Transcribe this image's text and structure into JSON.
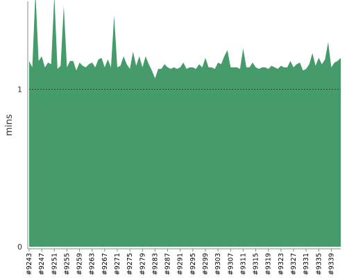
{
  "chart_data": {
    "type": "area",
    "ylabel": "mins",
    "ylim": [
      0,
      1.55
    ],
    "yticks": [
      {
        "value": 0,
        "label": "0"
      },
      {
        "value": 1,
        "label": "1"
      }
    ],
    "reference_line": {
      "y": 1,
      "style": "dotted"
    },
    "grid": false,
    "x_first_build": 9243,
    "x_label_step": 4,
    "x": [
      9243,
      9244,
      9245,
      9246,
      9247,
      9248,
      9249,
      9250,
      9251,
      9252,
      9253,
      9254,
      9255,
      9256,
      9257,
      9258,
      9259,
      9260,
      9261,
      9262,
      9263,
      9264,
      9265,
      9266,
      9267,
      9268,
      9269,
      9270,
      9271,
      9272,
      9273,
      9274,
      9275,
      9276,
      9277,
      9278,
      9279,
      9280,
      9281,
      9282,
      9283,
      9284,
      9285,
      9286,
      9287,
      9288,
      9289,
      9290,
      9291,
      9292,
      9293,
      9294,
      9295,
      9296,
      9297,
      9298,
      9299,
      9300,
      9301,
      9302,
      9303,
      9304,
      9305,
      9306,
      9307,
      9308,
      9309,
      9310,
      9311,
      9312,
      9313,
      9314,
      9315,
      9316,
      9317,
      9318,
      9319,
      9320,
      9321,
      9322,
      9323,
      9324,
      9325,
      9326,
      9327,
      9328,
      9329,
      9330,
      9331,
      9332,
      9333,
      9334,
      9335,
      9336,
      9337,
      9338,
      9339,
      9340,
      9341,
      9342
    ],
    "x_tick_labels": [
      "#9243",
      "#9247",
      "#9251",
      "#9255",
      "#9259",
      "#9263",
      "#9267",
      "#9271",
      "#9275",
      "#9279",
      "#9283",
      "#9287",
      "#9291",
      "#9295",
      "#9299",
      "#9303",
      "#9307",
      "#9311",
      "#9315",
      "#9319",
      "#9323",
      "#9327",
      "#9331",
      "#9335",
      "#9339"
    ],
    "values": [
      1.18,
      1.14,
      1.62,
      1.18,
      1.21,
      1.14,
      1.17,
      1.16,
      1.6,
      1.13,
      1.15,
      1.53,
      1.14,
      1.18,
      1.18,
      1.12,
      1.17,
      1.15,
      1.14,
      1.16,
      1.17,
      1.14,
      1.19,
      1.2,
      1.14,
      1.19,
      1.14,
      1.47,
      1.14,
      1.15,
      1.21,
      1.16,
      1.13,
      1.24,
      1.15,
      1.21,
      1.14,
      1.21,
      1.16,
      1.12,
      1.07,
      1.13,
      1.13,
      1.16,
      1.14,
      1.13,
      1.14,
      1.13,
      1.14,
      1.17,
      1.13,
      1.14,
      1.14,
      1.13,
      1.16,
      1.14,
      1.2,
      1.14,
      1.14,
      1.13,
      1.17,
      1.16,
      1.21,
      1.25,
      1.14,
      1.14,
      1.14,
      1.13,
      1.26,
      1.14,
      1.14,
      1.17,
      1.14,
      1.13,
      1.14,
      1.14,
      1.13,
      1.15,
      1.14,
      1.13,
      1.15,
      1.14,
      1.14,
      1.18,
      1.14,
      1.16,
      1.17,
      1.12,
      1.13,
      1.16,
      1.23,
      1.15,
      1.2,
      1.16,
      1.19,
      1.3,
      1.14,
      1.17,
      1.18,
      1.2
    ],
    "colors": {
      "fill": "#459b6a",
      "axis": "#888888",
      "reference_line": "#1e4d33"
    }
  }
}
